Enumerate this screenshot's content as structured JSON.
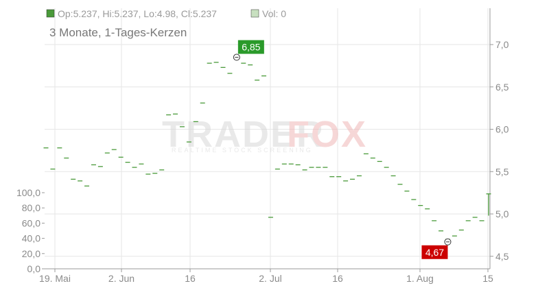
{
  "legend": {
    "ohlc": "Op:5.237, Hi:5.237, Lo:4.98, Cl:5.237",
    "vol": "Vol: 0"
  },
  "subtitle": "3 Monate, 1-Tages-Kerzen",
  "watermark": {
    "brand_a": "TRADER",
    "brand_b": "FOX",
    "tagline": "REALTIME STOCK SCREENING"
  },
  "colors": {
    "candle": "#4a9a3a",
    "high_label": "#2a9a2a",
    "low_label": "#cc0000",
    "grid": "#e6e6e6"
  },
  "chart_data": {
    "type": "candlestick",
    "title": "3 Monate, 1-Tages-Kerzen",
    "x_ticks": [
      "19. Mai",
      "2. Jun",
      "16",
      "2. Jul",
      "16",
      "1. Aug",
      "15"
    ],
    "y_right": {
      "ticks": [
        "7,0",
        "6,5",
        "6,0",
        "5,5",
        "5,0",
        "4,5"
      ],
      "range": [
        4.42,
        7.45
      ]
    },
    "y_volume": {
      "ticks": [
        "100,0",
        "80,0",
        "60,0",
        "40,0",
        "20,0",
        "0,0"
      ],
      "range": [
        0,
        100
      ]
    },
    "high_marker": {
      "label": "6,85",
      "value": 6.85
    },
    "low_marker": {
      "label": "4,67",
      "value": 4.67
    },
    "last_candle": {
      "open": 5.237,
      "high": 5.237,
      "low": 4.98,
      "close": 5.237,
      "volume": 0
    },
    "closes": [
      5.78,
      5.53,
      5.78,
      5.66,
      5.41,
      5.39,
      5.33,
      5.58,
      5.56,
      5.72,
      5.76,
      5.67,
      5.61,
      5.55,
      5.59,
      5.47,
      5.48,
      5.52,
      6.17,
      6.18,
      6.03,
      5.85,
      6.09,
      6.31,
      6.78,
      6.79,
      6.73,
      6.66,
      6.85,
      6.78,
      6.76,
      6.58,
      6.63,
      4.96,
      5.53,
      5.59,
      5.59,
      5.58,
      5.52,
      5.55,
      5.55,
      5.55,
      5.44,
      5.44,
      5.39,
      5.41,
      5.45,
      5.71,
      5.66,
      5.62,
      5.55,
      5.45,
      5.35,
      5.27,
      5.17,
      5.1,
      5.06,
      4.92,
      4.8,
      4.7,
      4.74,
      4.81,
      4.92,
      4.96,
      4.92,
      5.237
    ]
  }
}
